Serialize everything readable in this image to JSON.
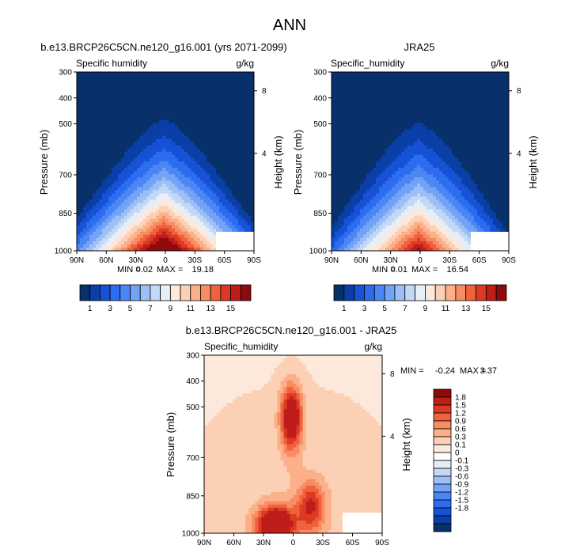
{
  "figure": {
    "title": "ANN",
    "colors": {
      "abs_levels": [
        "#08306b",
        "#0a3fa8",
        "#1652d6",
        "#2c6cf0",
        "#4c86f5",
        "#73a3f6",
        "#9cbff5",
        "#c3d8f5",
        "#e6eef8",
        "#fde9dc",
        "#fcd0b4",
        "#fbb08a",
        "#f88c63",
        "#f0623d",
        "#dd3a24",
        "#be1d1a",
        "#8f0a0b"
      ],
      "diff_levels": [
        "#08306b",
        "#0a3fa8",
        "#1652d6",
        "#2c6cf0",
        "#4c86f5",
        "#73a3f6",
        "#9cbff5",
        "#c3d8f5",
        "#e6eef8",
        "#ffffff",
        "#fde9dc",
        "#fcd0b4",
        "#fbb08a",
        "#f88c63",
        "#f0623d",
        "#dd3a24",
        "#be1d1a",
        "#8f0a0b"
      ]
    }
  },
  "chart_data": [
    {
      "type": "heatmap",
      "title": "b.e13.BRCP26C5CN.ne120_g16.001 (yrs 2071-2099)",
      "left_label": "Specific humidity",
      "right_label": "g/kg",
      "ylabel": "Pressure (mb)",
      "y2label": "Height (km)",
      "x_ticks": [
        "90N",
        "60N",
        "30N",
        "0",
        "30S",
        "60S",
        "90S"
      ],
      "y_ticks": [
        "300",
        "400",
        "500",
        "700",
        "850",
        "1000"
      ],
      "y2_ticks": [
        "8",
        "4"
      ],
      "stats": {
        "min_label": "MIN =",
        "min": "0.02",
        "max_label": "MAX =",
        "max": "19.18"
      },
      "levels": [
        "1",
        "3",
        "5",
        "7",
        "9",
        "11",
        "13",
        "15"
      ],
      "field_peak": 19.18
    },
    {
      "type": "heatmap",
      "title": "JRA25",
      "left_label": "Specific_humidity",
      "right_label": "g/kg",
      "ylabel": "Pressure (mb)",
      "y2label": "Height (km)",
      "x_ticks": [
        "90N",
        "60N",
        "30N",
        "0",
        "30S",
        "60S",
        "90S"
      ],
      "y_ticks": [
        "300",
        "400",
        "500",
        "700",
        "850",
        "1000"
      ],
      "y2_ticks": [
        "8",
        "4"
      ],
      "stats": {
        "min_label": "MIN =",
        "min": "0.01",
        "max_label": "MAX =",
        "max": "16.54"
      },
      "levels": [
        "1",
        "3",
        "5",
        "7",
        "9",
        "11",
        "13",
        "15"
      ],
      "field_peak": 16.54
    },
    {
      "type": "heatmap",
      "title": "b.e13.BRCP26C5CN.ne120_g16.001 - JRA25",
      "left_label": "Specific_humidity",
      "right_label": "g/kg",
      "ylabel": "Pressure (mb)",
      "y2label": "Height (km)",
      "x_ticks": [
        "90N",
        "60N",
        "30N",
        "0",
        "30S",
        "60S",
        "90S"
      ],
      "y_ticks": [
        "300",
        "400",
        "500",
        "700",
        "850",
        "1000"
      ],
      "y2_ticks": [
        "8",
        "4"
      ],
      "stats": {
        "min_label": "MIN =",
        "min": "-0.24",
        "max_label": "MAX =",
        "max": "3.37"
      },
      "levels": [
        "1.8",
        "1.5",
        "1.2",
        "0.9",
        "0.6",
        "0.3",
        "0.1",
        "0",
        "-0.1",
        "-0.3",
        "-0.6",
        "-0.9",
        "-1.2",
        "-1.5",
        "-1.8"
      ]
    }
  ]
}
